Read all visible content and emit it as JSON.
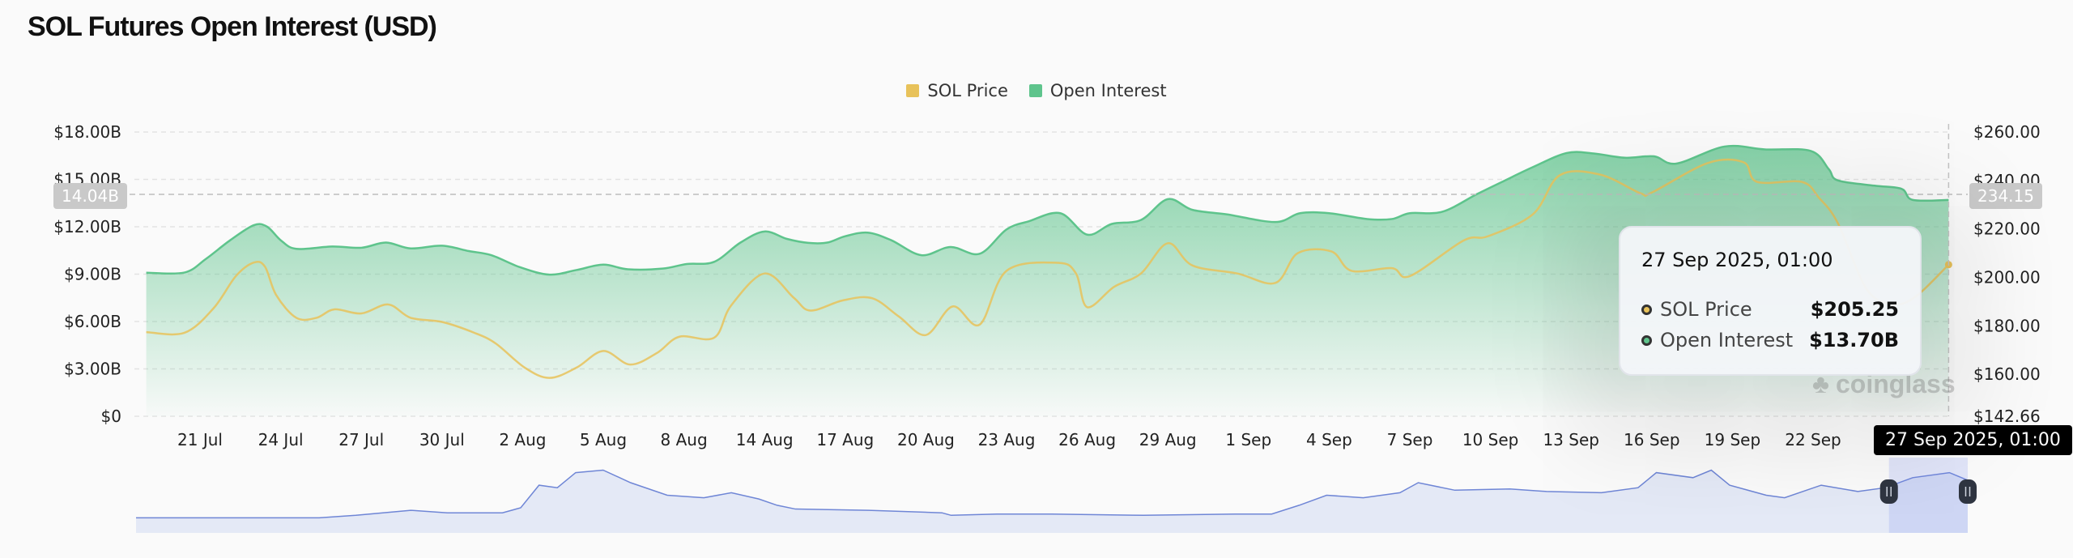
{
  "title": "SOL Futures Open Interest (USD)",
  "legend": [
    {
      "name": "SOL Price",
      "color": "#e8c25a"
    },
    {
      "name": "Open Interest",
      "color": "#5ec48c"
    }
  ],
  "tooltip": {
    "date": "27 Sep 2025, 01:00",
    "rows": [
      {
        "name": "SOL Price",
        "value": "$205.25",
        "color": "#e8c25a"
      },
      {
        "name": "Open Interest",
        "value": "$13.70B",
        "color": "#5ec48c"
      }
    ]
  },
  "crosshair": {
    "x_label": "27 Sep 2025, 01:00",
    "left_value": "14.04B",
    "right_value": "234.15"
  },
  "watermark": "coinglass",
  "chart_data": {
    "type": "area+line",
    "title": "SOL Futures Open Interest (USD)",
    "x_ticks": [
      "21 Jul",
      "24 Jul",
      "27 Jul",
      "30 Jul",
      "2 Aug",
      "5 Aug",
      "8 Aug",
      "14 Aug",
      "17 Aug",
      "20 Aug",
      "23 Aug",
      "26 Aug",
      "29 Aug",
      "1 Sep",
      "4 Sep",
      "7 Sep",
      "10 Sep",
      "13 Sep",
      "16 Sep",
      "19 Sep",
      "22 Sep"
    ],
    "x_tick_dates": [
      "2025-07-21",
      "2025-07-24",
      "2025-07-27",
      "2025-07-30",
      "2025-08-02",
      "2025-08-05",
      "2025-08-08",
      "2025-08-14",
      "2025-08-17",
      "2025-08-20",
      "2025-08-23",
      "2025-08-26",
      "2025-08-29",
      "2025-09-01",
      "2025-09-04",
      "2025-09-07",
      "2025-09-10",
      "2025-09-13",
      "2025-09-16",
      "2025-09-19",
      "2025-09-22"
    ],
    "x_range": [
      "2025-07-19T00:00",
      "2025-09-27T01:00"
    ],
    "y_left": {
      "ticks": [
        "$0",
        "$3.00B",
        "$6.00B",
        "$9.00B",
        "$12.00B",
        "$15.00B",
        "$18.00B"
      ],
      "tick_values": [
        0,
        3,
        6,
        9,
        12,
        15,
        18
      ],
      "range": [
        0,
        18
      ],
      "unit": "B USD"
    },
    "y_right": {
      "ticks": [
        "$142.66",
        "$160.00",
        "$180.00",
        "$200.00",
        "$220.00",
        "$240.00",
        "$260.00"
      ],
      "tick_values": [
        142.66,
        160,
        180,
        200,
        220,
        240,
        260
      ],
      "range": [
        142.66,
        260
      ]
    },
    "grid": true,
    "legend_position": "top-center",
    "series": [
      {
        "name": "Open Interest",
        "axis": "left",
        "color": "#5ec48c",
        "points": [
          [
            "2025-07-19T00:00",
            9.09
          ],
          [
            "2025-07-20T10:00",
            9.1
          ],
          [
            "2025-07-21T05:00",
            9.95
          ],
          [
            "2025-07-22T03:00",
            11.15
          ],
          [
            "2025-07-23T00:00",
            12.1
          ],
          [
            "2025-07-23T12:00",
            12.0
          ],
          [
            "2025-07-24T00:00",
            11.15
          ],
          [
            "2025-07-24T14:00",
            10.6
          ],
          [
            "2025-07-25T22:00",
            10.75
          ],
          [
            "2025-07-27T00:00",
            10.67
          ],
          [
            "2025-07-27T22:00",
            11.0
          ],
          [
            "2025-07-28T20:00",
            10.63
          ],
          [
            "2025-07-30T00:00",
            10.8
          ],
          [
            "2025-07-31T00:00",
            10.46
          ],
          [
            "2025-07-31T20:00",
            10.2
          ],
          [
            "2025-08-01T22:00",
            9.43
          ],
          [
            "2025-08-03T00:00",
            8.97
          ],
          [
            "2025-08-04T00:00",
            9.26
          ],
          [
            "2025-08-05T00:00",
            9.6
          ],
          [
            "2025-08-05T22:00",
            9.31
          ],
          [
            "2025-08-07T05:00",
            9.35
          ],
          [
            "2025-08-08T05:00",
            9.64
          ],
          [
            "2025-08-10T06:00",
            9.78
          ],
          [
            "2025-08-12T05:00",
            11.0
          ],
          [
            "2025-08-14T00:00",
            11.7
          ],
          [
            "2025-08-14T20:00",
            11.23
          ],
          [
            "2025-08-15T15:00",
            10.98
          ],
          [
            "2025-08-16T08:00",
            11.0
          ],
          [
            "2025-08-17T00:00",
            11.4
          ],
          [
            "2025-08-17T20:00",
            11.63
          ],
          [
            "2025-08-18T17:00",
            11.15
          ],
          [
            "2025-08-19T20:00",
            10.2
          ],
          [
            "2025-08-20T22:00",
            10.72
          ],
          [
            "2025-08-22T00:00",
            10.29
          ],
          [
            "2025-08-23T00:00",
            11.83
          ],
          [
            "2025-08-23T20:00",
            12.35
          ],
          [
            "2025-08-25T00:00",
            12.86
          ],
          [
            "2025-08-26T00:00",
            11.5
          ],
          [
            "2025-08-26T22:00",
            12.18
          ],
          [
            "2025-08-28T00:00",
            12.43
          ],
          [
            "2025-08-29T00:00",
            13.75
          ],
          [
            "2025-08-29T22:00",
            13.07
          ],
          [
            "2025-08-31T05:00",
            12.78
          ],
          [
            "2025-09-02T00:00",
            12.3
          ],
          [
            "2025-09-02T22:00",
            12.86
          ],
          [
            "2025-09-04T00:00",
            12.86
          ],
          [
            "2025-09-05T10:00",
            12.49
          ],
          [
            "2025-09-06T08:00",
            12.49
          ],
          [
            "2025-09-07T00:00",
            12.86
          ],
          [
            "2025-09-08T05:00",
            12.95
          ],
          [
            "2025-09-09T12:00",
            14.07
          ],
          [
            "2025-09-10T12:00",
            14.9
          ],
          [
            "2025-09-11T14:00",
            15.78
          ],
          [
            "2025-09-12T20:00",
            16.67
          ],
          [
            "2025-09-13T20:00",
            16.64
          ],
          [
            "2025-09-15T00:00",
            16.37
          ],
          [
            "2025-09-16T02:00",
            16.46
          ],
          [
            "2025-09-16T22:00",
            16.0
          ],
          [
            "2025-09-18T17:00",
            17.08
          ],
          [
            "2025-09-20T05:00",
            16.9
          ],
          [
            "2025-09-21T22:00",
            16.8
          ],
          [
            "2025-09-22T14:00",
            15.65
          ],
          [
            "2025-09-22T22:00",
            14.94
          ],
          [
            "2025-09-24T07:00",
            14.6
          ],
          [
            "2025-09-25T07:00",
            14.4
          ],
          [
            "2025-09-25T17:00",
            13.7
          ],
          [
            "2025-09-27T01:00",
            13.7
          ]
        ]
      },
      {
        "name": "SOL Price",
        "axis": "right",
        "color": "#e8c25a",
        "points": [
          [
            "2025-07-19T00:00",
            177.4
          ],
          [
            "2025-07-20T10:00",
            177.1
          ],
          [
            "2025-07-21T12:00",
            187.2
          ],
          [
            "2025-07-22T08:00",
            200.5
          ],
          [
            "2025-07-23T00:00",
            206.1
          ],
          [
            "2025-07-23T10:00",
            204.4
          ],
          [
            "2025-07-23T20:00",
            192.7
          ],
          [
            "2025-07-24T14:00",
            183.3
          ],
          [
            "2025-07-25T08:00",
            183.3
          ],
          [
            "2025-07-26T00:00",
            186.8
          ],
          [
            "2025-07-27T00:00",
            185.1
          ],
          [
            "2025-07-28T00:00",
            188.8
          ],
          [
            "2025-07-28T20:00",
            183.3
          ],
          [
            "2025-07-30T00:00",
            181.6
          ],
          [
            "2025-07-31T05:00",
            177.1
          ],
          [
            "2025-08-01T00:00",
            172.7
          ],
          [
            "2025-08-02T02:00",
            162.7
          ],
          [
            "2025-08-03T00:00",
            158.5
          ],
          [
            "2025-08-04T00:00",
            162.7
          ],
          [
            "2025-08-05T00:00",
            169.6
          ],
          [
            "2025-08-06T00:00",
            164.0
          ],
          [
            "2025-08-07T00:00",
            168.8
          ],
          [
            "2025-08-07T20:00",
            175.5
          ],
          [
            "2025-08-10T06:00",
            175.1
          ],
          [
            "2025-08-11T12:00",
            188.3
          ],
          [
            "2025-08-14T00:00",
            201.6
          ],
          [
            "2025-08-15T02:00",
            191.6
          ],
          [
            "2025-08-15T17:00",
            186.3
          ],
          [
            "2025-08-16T22:00",
            190.5
          ],
          [
            "2025-08-18T00:00",
            191.4
          ],
          [
            "2025-08-19T00:00",
            183.8
          ],
          [
            "2025-08-20T00:00",
            176.2
          ],
          [
            "2025-08-21T00:00",
            188.0
          ],
          [
            "2025-08-22T00:00",
            180.5
          ],
          [
            "2025-08-23T00:00",
            202.7
          ],
          [
            "2025-08-24T22:00",
            206.0
          ],
          [
            "2025-08-25T14:00",
            201.6
          ],
          [
            "2025-08-26T00:00",
            187.7
          ],
          [
            "2025-08-27T00:00",
            196.1
          ],
          [
            "2025-08-28T00:00",
            201.6
          ],
          [
            "2025-08-29T00:00",
            214.1
          ],
          [
            "2025-08-29T22:00",
            204.9
          ],
          [
            "2025-08-31T14:00",
            201.6
          ],
          [
            "2025-09-02T00:00",
            197.7
          ],
          [
            "2025-09-02T20:00",
            210.0
          ],
          [
            "2025-09-04T02:00",
            210.7
          ],
          [
            "2025-09-04T20:00",
            202.7
          ],
          [
            "2025-09-06T08:00",
            203.8
          ],
          [
            "2025-09-07T00:00",
            200.5
          ],
          [
            "2025-09-09T00:00",
            215.2
          ],
          [
            "2025-09-09T22:00",
            217.0
          ],
          [
            "2025-09-11T14:00",
            226.1
          ],
          [
            "2025-09-12T14:00",
            242.2
          ],
          [
            "2025-09-14T02:00",
            242.4
          ],
          [
            "2025-09-15T14:00",
            234.7
          ],
          [
            "2025-09-16T00:00",
            235.0
          ],
          [
            "2025-09-18T02:00",
            247.2
          ],
          [
            "2025-09-19T10:00",
            247.5
          ],
          [
            "2025-09-19T22:00",
            239.4
          ],
          [
            "2025-09-21T14:00",
            239.4
          ],
          [
            "2025-09-22T05:00",
            233.0
          ],
          [
            "2025-09-22T22:00",
            222.5
          ],
          [
            "2025-09-24T00:00",
            195.0
          ],
          [
            "2025-09-25T00:00",
            189.0
          ],
          [
            "2025-09-25T20:00",
            192.2
          ],
          [
            "2025-09-27T01:00",
            205.25
          ]
        ]
      }
    ],
    "navigator": {
      "color": "#6f86d6",
      "selected_range_fraction": [
        0.957,
        1.0
      ],
      "relative_levels": [
        [
          0,
          60
        ],
        [
          0.1,
          60
        ],
        [
          0.12,
          70
        ],
        [
          0.15,
          90
        ],
        [
          0.17,
          80
        ],
        [
          0.2,
          80
        ],
        [
          0.21,
          100
        ],
        [
          0.22,
          190
        ],
        [
          0.23,
          180
        ],
        [
          0.24,
          240
        ],
        [
          0.255,
          250
        ],
        [
          0.27,
          200
        ],
        [
          0.29,
          150
        ],
        [
          0.31,
          140
        ],
        [
          0.325,
          160
        ],
        [
          0.34,
          135
        ],
        [
          0.35,
          110
        ],
        [
          0.36,
          95
        ],
        [
          0.4,
          90
        ],
        [
          0.44,
          80
        ],
        [
          0.445,
          70
        ],
        [
          0.47,
          75
        ],
        [
          0.5,
          75
        ],
        [
          0.55,
          70
        ],
        [
          0.6,
          75
        ],
        [
          0.62,
          75
        ],
        [
          0.635,
          110
        ],
        [
          0.65,
          150
        ],
        [
          0.67,
          140
        ],
        [
          0.69,
          160
        ],
        [
          0.7,
          200
        ],
        [
          0.72,
          170
        ],
        [
          0.75,
          175
        ],
        [
          0.77,
          165
        ],
        [
          0.8,
          160
        ],
        [
          0.82,
          180
        ],
        [
          0.83,
          240
        ],
        [
          0.85,
          220
        ],
        [
          0.86,
          250
        ],
        [
          0.87,
          190
        ],
        [
          0.89,
          150
        ],
        [
          0.9,
          140
        ],
        [
          0.92,
          190
        ],
        [
          0.94,
          165
        ],
        [
          0.955,
          180
        ],
        [
          0.97,
          220
        ],
        [
          0.99,
          240
        ],
        [
          1,
          210
        ]
      ]
    }
  }
}
